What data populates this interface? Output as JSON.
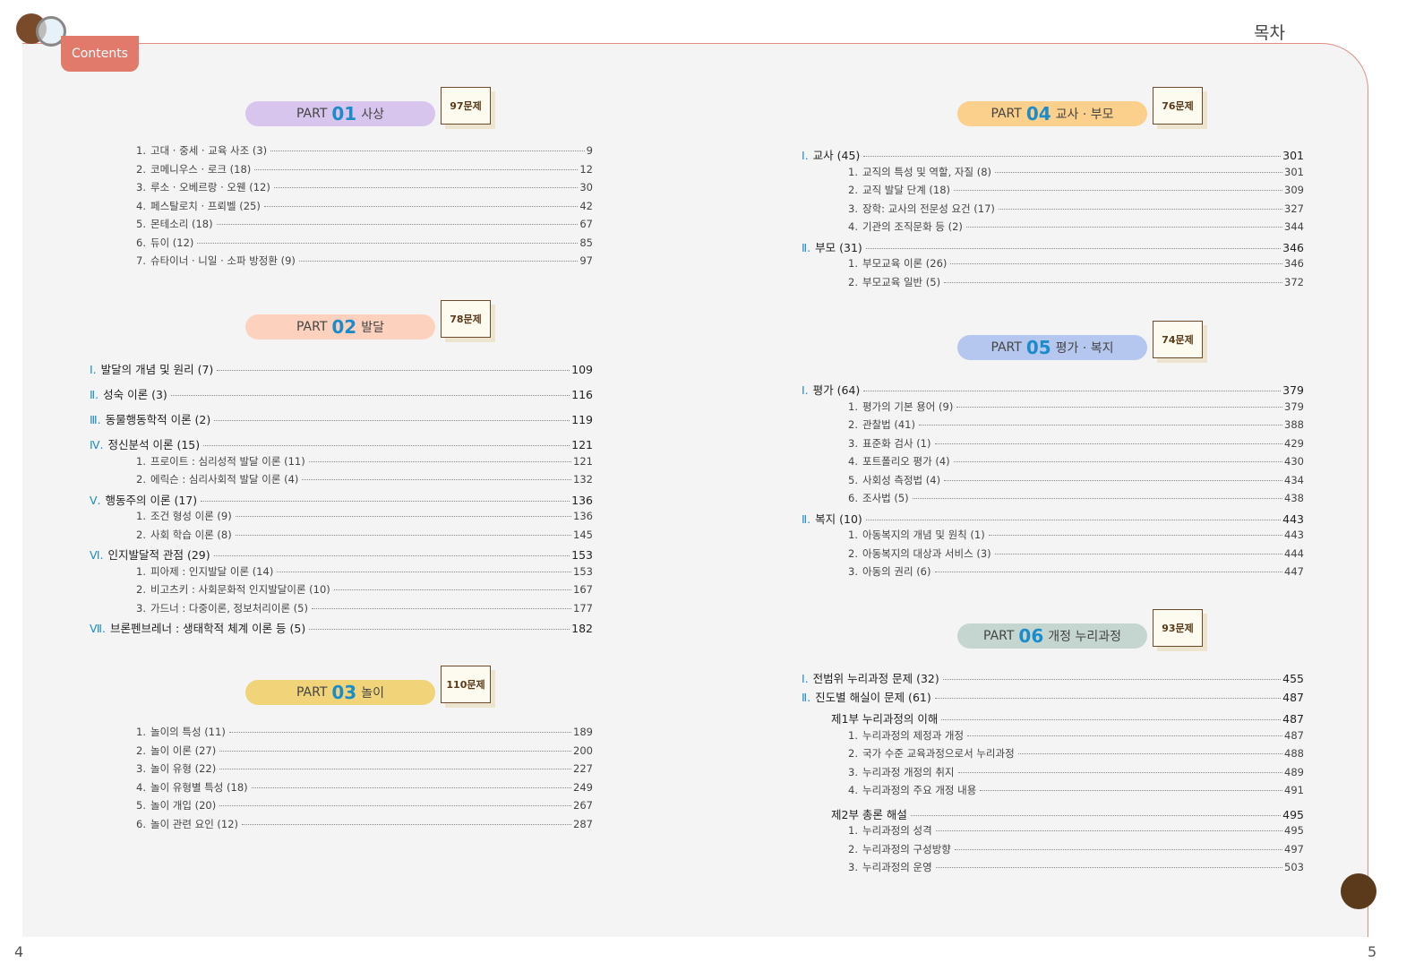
{
  "header": {
    "tab": "Contents",
    "title": "목차"
  },
  "page_numbers": [
    4,
    5
  ],
  "parts": [
    {
      "label": "PART",
      "number": "01",
      "name": "사상",
      "count": "97문제",
      "entries": [
        {
          "marker": "1.",
          "text": "고대 · 중세 · 교육 사조 (3)",
          "page": 9
        },
        {
          "marker": "2.",
          "text": "코메니우스 · 로크 (18)",
          "page": 12
        },
        {
          "marker": "3.",
          "text": "루소 · 오베르랑 · 오웬 (12)",
          "page": 30
        },
        {
          "marker": "4.",
          "text": "페스탈로치 · 프뢰벨 (25)",
          "page": 42
        },
        {
          "marker": "5.",
          "text": "몬테소리 (18)",
          "page": 67
        },
        {
          "marker": "6.",
          "text": "듀이 (12)",
          "page": 85
        },
        {
          "marker": "7.",
          "text": "슈타이너 · 니일 · 소파 방정환 (9)",
          "page": 97
        }
      ]
    },
    {
      "label": "PART",
      "number": "02",
      "name": "발달",
      "count": "78문제",
      "entries": [
        {
          "marker": "Ⅰ.",
          "text": "발달의 개념 및 원리 (7)",
          "page": 109
        },
        {
          "marker": "Ⅱ.",
          "text": "성숙 이론 (3)",
          "page": 116
        },
        {
          "marker": "Ⅲ.",
          "text": "동물행동학적 이론 (2)",
          "page": 119
        },
        {
          "marker": "Ⅳ.",
          "text": "정신분석 이론 (15)",
          "page": 121,
          "items": [
            {
              "marker": "1.",
              "text": "프로이트 : 심리성적 발달 이론 (11)",
              "page": 121
            },
            {
              "marker": "2.",
              "text": "에릭슨 : 심리사회적 발달 이론 (4)",
              "page": 132
            }
          ]
        },
        {
          "marker": "Ⅴ.",
          "text": "행동주의 이론 (17)",
          "page": 136,
          "items": [
            {
              "marker": "1.",
              "text": "조건 형성 이론 (9)",
              "page": 136
            },
            {
              "marker": "2.",
              "text": "사회 학습 이론 (8)",
              "page": 145
            }
          ]
        },
        {
          "marker": "Ⅵ.",
          "text": "인지발달적 관점 (29)",
          "page": 153,
          "items": [
            {
              "marker": "1.",
              "text": "피아제 : 인지발달 이론 (14)",
              "page": 153
            },
            {
              "marker": "2.",
              "text": "비고츠키 : 사회문화적 인지발달이론 (10)",
              "page": 167
            },
            {
              "marker": "3.",
              "text": "가드너 : 다중이론, 정보처리이론 (5)",
              "page": 177
            }
          ]
        },
        {
          "marker": "Ⅶ.",
          "text": "브론펜브레너 : 생태학적 체계 이론 등 (5)",
          "page": 182
        }
      ]
    },
    {
      "label": "PART",
      "number": "03",
      "name": "놀이",
      "count": "110문제",
      "entries": [
        {
          "marker": "1.",
          "text": "놀이의 특성 (11)",
          "page": 189
        },
        {
          "marker": "2.",
          "text": "놀이 이론 (27)",
          "page": 200
        },
        {
          "marker": "3.",
          "text": "놀이 유형 (22)",
          "page": 227
        },
        {
          "marker": "4.",
          "text": "놀이 유형별 특성 (18)",
          "page": 249
        },
        {
          "marker": "5.",
          "text": "놀이 개입 (20)",
          "page": 267
        },
        {
          "marker": "6.",
          "text": "놀이 관련 요인 (12)",
          "page": 287
        }
      ]
    },
    {
      "label": "PART",
      "number": "04",
      "name": "교사 · 부모",
      "count": "76문제",
      "entries": [
        {
          "marker": "Ⅰ.",
          "text": "교사 (45)",
          "page": 301,
          "items": [
            {
              "marker": "1.",
              "text": "교직의 특성 및 역할, 자질 (8)",
              "page": 301
            },
            {
              "marker": "2.",
              "text": "교직 발달 단계 (18)",
              "page": 309
            },
            {
              "marker": "3.",
              "text": "장학: 교사의 전문성 요건 (17)",
              "page": 327
            },
            {
              "marker": "4.",
              "text": "기관의 조직문화 등 (2)",
              "page": 344
            }
          ]
        },
        {
          "marker": "Ⅱ.",
          "text": "부모 (31)",
          "page": 346,
          "items": [
            {
              "marker": "1.",
              "text": "부모교육 이론 (26)",
              "page": 346
            },
            {
              "marker": "2.",
              "text": "부모교육 일반 (5)",
              "page": 372
            }
          ]
        }
      ]
    },
    {
      "label": "PART",
      "number": "05",
      "name": "평가 · 복지",
      "count": "74문제",
      "entries": [
        {
          "marker": "Ⅰ.",
          "text": "평가 (64)",
          "page": 379,
          "items": [
            {
              "marker": "1.",
              "text": "평가의 기본 용어 (9)",
              "page": 379
            },
            {
              "marker": "2.",
              "text": "관찰법 (41)",
              "page": 388
            },
            {
              "marker": "3.",
              "text": "표준화 검사 (1)",
              "page": 429
            },
            {
              "marker": "4.",
              "text": "포트폴리오 평가 (4)",
              "page": 430
            },
            {
              "marker": "5.",
              "text": "사회성 측정법 (4)",
              "page": 434
            },
            {
              "marker": "6.",
              "text": "조사법 (5)",
              "page": 438
            }
          ]
        },
        {
          "marker": "Ⅱ.",
          "text": "복지 (10)",
          "page": 443,
          "items": [
            {
              "marker": "1.",
              "text": "아동복지의 개념 및 원칙 (1)",
              "page": 443
            },
            {
              "marker": "2.",
              "text": "아동복지의 대상과 서비스 (3)",
              "page": 444
            },
            {
              "marker": "3.",
              "text": "아동의 권리 (6)",
              "page": 447
            }
          ]
        }
      ]
    },
    {
      "label": "PART",
      "number": "06",
      "name": "개정 누리과정",
      "count": "93문제",
      "entries": [
        {
          "marker": "Ⅰ.",
          "text": "전범위 누리과정 문제 (32)",
          "page": 455
        },
        {
          "marker": "Ⅱ.",
          "text": "진도별 해실이 문제 (61)",
          "page": 487,
          "items": [
            {
              "text": "제1부 누리과정의 이해",
              "page": 487,
              "items": [
                {
                  "marker": "1.",
                  "text": "누리과정의 제정과 개정",
                  "page": 487
                },
                {
                  "marker": "2.",
                  "text": "국가 수준 교육과정으로서 누리과정",
                  "page": 488
                },
                {
                  "marker": "3.",
                  "text": "누리과정 개정의 취지",
                  "page": 489
                },
                {
                  "marker": "4.",
                  "text": "누리과정의 주요 개정 내용",
                  "page": 491
                }
              ]
            },
            {
              "text": "제2부 총론 해설",
              "page": 495,
              "items": [
                {
                  "marker": "1.",
                  "text": "누리과정의 성격",
                  "page": 495
                },
                {
                  "marker": "2.",
                  "text": "누리과정의 구성방향",
                  "page": 497
                },
                {
                  "marker": "3.",
                  "text": "누리과정의 운영",
                  "page": 503
                }
              ]
            }
          ]
        }
      ]
    }
  ]
}
